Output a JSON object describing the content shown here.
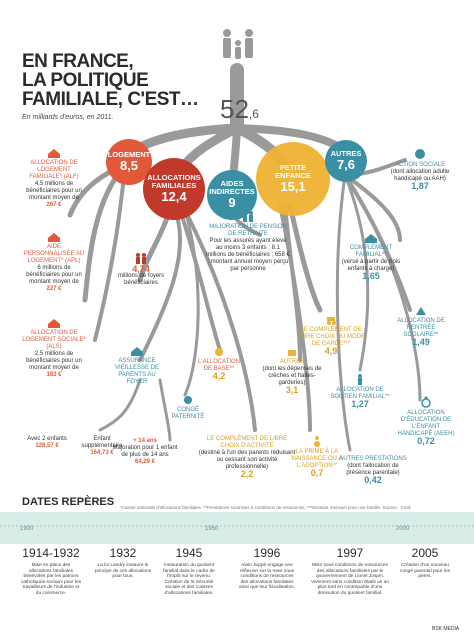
{
  "title_lines": [
    "EN FRANCE,",
    "LA POLITIQUE",
    "FAMILIALE, C'EST…"
  ],
  "subtitle": "En milliards d'euros, en 2011.",
  "total": {
    "whole": "52",
    "decimal": ",6"
  },
  "circles": {
    "logement": {
      "label": "LOGEMENT",
      "value": "8,5"
    },
    "allocations": {
      "label1": "ALLOCATIONS",
      "label2": "FAMILIALES",
      "value": "12,4"
    },
    "aides": {
      "label1": "AIDES",
      "label2": "INDIRECTES",
      "value": "9"
    },
    "petite": {
      "label1": "PETITE",
      "label2": "ENFANCE",
      "value": "15,1"
    },
    "autres": {
      "label": "AUTRES",
      "value": "7,6"
    }
  },
  "items": {
    "alf": {
      "title": "ALLOCATION DE LOGEMENT FAMILIALE* (ALF)",
      "text": "4,5 millions de bénéficiaires pour un montant moyen de",
      "amount": "267 €"
    },
    "apl": {
      "title": "AIDE PERSONNALISÉE AU LOGEMENT* (APL)",
      "text": "6 millions de bénéficiaires pour un montant moyen de",
      "amount": "227 €"
    },
    "als": {
      "title": "ALLOCATION DE LOGEMENT SOCIALE* (ALS)",
      "text": "2,5 millions de bénéficiaires pour un montant moyen de",
      "amount": "183 €"
    },
    "foyers": {
      "num": "4,74",
      "text": "millions de foyers bénéficiaires"
    },
    "retraite": {
      "title": "MAJORATION DE PENSION DE RETRAITE",
      "text": "Pour les assurés ayant élevé au moins 3 enfants : 8,1 millions de bénéficiaires ; 658 € : montant annuel moyen perçu par personne"
    },
    "action_sociale": {
      "title": "ACTION SOCIALE",
      "text": "(dont allocation adulte handicapé ou AAH)",
      "num": "1,87"
    },
    "complement_familial": {
      "title": "COMPLÉMENT FAMILIAL**",
      "text": "(versé à partir de trois enfants à charge)",
      "num": "1,65"
    },
    "garde": {
      "title": "LE COMPLÉMENT DE LIBRE CHOIX DU MODE DE GARDE***",
      "num": "4,9"
    },
    "rentree": {
      "title": "ALLOCATION DE RENTRÉE SCOLAIRE**",
      "num": "1,49"
    },
    "creches": {
      "title": "AUTRES",
      "text": "(dont les dépenses de crèches et haltes-garderies)",
      "num": "3,1"
    },
    "base": {
      "title": "L'ALLOCATION DE BASE**",
      "num": "4,2"
    },
    "vieillesse": {
      "title": "ASSURANCE VIEILLESSE DE PARENTS AU FOYER"
    },
    "soutien": {
      "title": "ALLOCATION DE SOUTIEN FAMILIAL**",
      "num": "1,27"
    },
    "handicape": {
      "title": "ALLOCATION D'ÉDUCATION DE L'ENFANT HANDICAPÉ (AEEH)",
      "num": "0,72"
    },
    "paternite": {
      "title": "CONGÉ PATERNITÉ"
    },
    "activite": {
      "title": "LE COMPLÉMENT DE LIBRE CHOIX D'ACTIVITÉ",
      "text": "(destiné à l'un des parents réduisant ou cessant son activité professionnelle)",
      "num": "2,2"
    },
    "naissance": {
      "title": "LA PRIME À LA NAISSANCE OU À L'ADOPTION**",
      "num": "0,7"
    },
    "autres_prest": {
      "title": "AUTRES PRESTATIONS",
      "text": "(dont l'allocation de présence parentale)",
      "num": "0,42"
    },
    "deux_enfants": {
      "label": "Avec 2 enfants",
      "amount": "128,57 €"
    },
    "supp": {
      "label": "Enfant supplémentaire",
      "amount": "164,73 €"
    },
    "maj14": {
      "label": "+ 14 ans",
      "text": "Majoration pour 1 enfant de plus de 14 ans",
      "amount": "64,29 €"
    }
  },
  "footnote": "*Caisse nationale d'allocations familiales. **Prestations soumises à conditions de ressources. ***Montant mensuel pour une famille. Source : Cnaf.",
  "dates_title": "DATES REPÈRES",
  "ticks": [
    "1900",
    "1950",
    "2000"
  ],
  "dates": [
    {
      "year": "1914-1932",
      "text": "Mise en place des allocations familiales bénévoles par les patrons catholiques sociaux pour les travailleurs de l'industrie et du commerce."
    },
    {
      "year": "1932",
      "text": "La loi Landry instaure le principe de ces allocations pour tous."
    },
    {
      "year": "1945",
      "text": "Instauration du quotient familial dans le cadre de l'impôt sur le revenu. Création de la Sécurité sociale et des Caisses d'allocations familiales."
    },
    {
      "year": "1996",
      "text": "Alain Juppé engage une réflexion sur la mise sous conditions de ressources des allocations familiales ainsi que leur fiscalisation."
    },
    {
      "year": "1997",
      "text": "Mise sous conditions de ressources des allocations familiales par le gouvernement de Lionel Jospin. Vivement sans condition établi un an plus tard en contrepartie d'une diminution du quotient familial."
    },
    {
      "year": "2005",
      "text": "Création d'un nouveau congé parental pour les pères."
    }
  ],
  "brand": "BSK MEDIA",
  "colors": {
    "logement": "#e2593a",
    "allocations": "#c0392b",
    "aides": "#3b8fa5",
    "petite": "#f0b233",
    "autres": "#3b8fa5",
    "tree": "#8c8c8c",
    "teal": "#3b8fa5",
    "orange": "#e2593a"
  }
}
